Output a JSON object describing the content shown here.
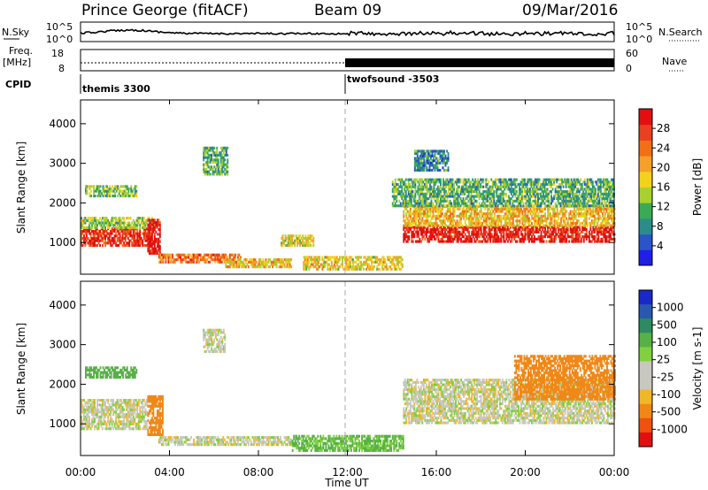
{
  "header": {
    "station": "Prince George (fitACF)",
    "beam": "Beam 09",
    "date": "09/Mar/2016"
  },
  "top_panels": {
    "nsky": {
      "label": "N.Sky",
      "tick_top": "10^5",
      "tick_bottom": "10^0",
      "right_label": "N.Search",
      "right_tick_top": "10^5",
      "right_tick_bottom": "10^0"
    },
    "freq": {
      "label_line1": "Freq.",
      "label_line2": "[MHz]",
      "tick_top": "18",
      "tick_bottom": "8",
      "right_label": "Nave",
      "right_tick_top": "60",
      "right_tick_bottom": "0"
    },
    "cpid": {
      "label": "CPID",
      "modes": [
        {
          "name": "themis 3300",
          "start_hour": 0,
          "end_hour": 12
        },
        {
          "name": "twofsound -3503",
          "start_hour": 12,
          "end_hour": 24
        }
      ]
    }
  },
  "chart_data": [
    {
      "type": "heatmap",
      "title": "",
      "xlabel": "",
      "ylabel": "Slant Range [km]",
      "x_range_hours": [
        0,
        24
      ],
      "ylim": [
        200,
        4600
      ],
      "yticks": [
        1000,
        2000,
        3000,
        4000
      ],
      "colorbar": {
        "label": "Power [dB]",
        "ticks": [
          "4",
          "8",
          "12",
          "16",
          "20",
          "24",
          "28"
        ],
        "colors": [
          "#1f1fe6",
          "#2a55c8",
          "#2c8c8c",
          "#3aaa55",
          "#a8d030",
          "#f2d21c",
          "#f5a02a",
          "#f07018",
          "#e84020",
          "#e01010"
        ],
        "range": [
          0,
          32
        ]
      },
      "regions": [
        {
          "t0": 0.0,
          "t1": 3.2,
          "r0": 900,
          "r1": 1350,
          "level": 0.9
        },
        {
          "t0": 0.0,
          "t1": 3.2,
          "r0": 1350,
          "r1": 1650,
          "level": 0.45
        },
        {
          "t0": 3.0,
          "t1": 3.6,
          "r0": 700,
          "r1": 1600,
          "level": 0.95
        },
        {
          "t0": 0.2,
          "t1": 2.5,
          "r0": 2150,
          "r1": 2450,
          "level": 0.4
        },
        {
          "t0": 3.5,
          "t1": 7.2,
          "r0": 480,
          "r1": 680,
          "level": 0.75
        },
        {
          "t0": 6.5,
          "t1": 9.5,
          "r0": 360,
          "r1": 560,
          "level": 0.6
        },
        {
          "t0": 5.5,
          "t1": 6.6,
          "r0": 2700,
          "r1": 3400,
          "level": 0.35
        },
        {
          "t0": 9.0,
          "t1": 10.5,
          "r0": 900,
          "r1": 1150,
          "level": 0.5
        },
        {
          "t0": 10.0,
          "t1": 14.5,
          "r0": 300,
          "r1": 650,
          "level": 0.55
        },
        {
          "t0": 14.5,
          "t1": 24.0,
          "r0": 1000,
          "r1": 1400,
          "level": 0.95
        },
        {
          "t0": 14.5,
          "t1": 24.0,
          "r0": 1400,
          "r1": 1900,
          "level": 0.6
        },
        {
          "t0": 14.0,
          "t1": 24.0,
          "r0": 1900,
          "r1": 2600,
          "level": 0.35
        },
        {
          "t0": 15.0,
          "t1": 16.5,
          "r0": 2800,
          "r1": 3300,
          "level": 0.25
        }
      ]
    },
    {
      "type": "heatmap",
      "title": "",
      "xlabel": "Time UT",
      "ylabel": "Slant Range [km]",
      "x_range_hours": [
        0,
        24
      ],
      "xticks": [
        "00:00",
        "04:00",
        "08:00",
        "12:00",
        "16:00",
        "20:00",
        "00:00"
      ],
      "ylim": [
        200,
        4600
      ],
      "yticks": [
        1000,
        2000,
        3000,
        4000
      ],
      "colorbar": {
        "label": "Velocity [m s-1]",
        "ticks": [
          "1000",
          "500",
          "100",
          "25",
          "-25",
          "-100",
          "-500",
          "-1000"
        ],
        "colors": [
          "#1a28c8",
          "#2a58b0",
          "#2e8a60",
          "#58b048",
          "#80d040",
          "#c8c8c0",
          "#c8c8c0",
          "#f0b828",
          "#f08818",
          "#f05010",
          "#e01010"
        ],
        "range": [
          -1250,
          1250
        ]
      },
      "regions": [
        {
          "t0": 0.0,
          "t1": 3.0,
          "r0": 850,
          "r1": 1600,
          "vel": 0
        },
        {
          "t0": 3.0,
          "t1": 3.7,
          "r0": 700,
          "r1": 1700,
          "vel": -200
        },
        {
          "t0": 3.5,
          "t1": 9.5,
          "r0": 450,
          "r1": 650,
          "vel": 0
        },
        {
          "t0": 9.5,
          "t1": 14.5,
          "r0": 300,
          "r1": 700,
          "vel": 70
        },
        {
          "t0": 0.2,
          "t1": 2.5,
          "r0": 2150,
          "r1": 2450,
          "vel": 120
        },
        {
          "t0": 14.5,
          "t1": 24.0,
          "r0": 1000,
          "r1": 2100,
          "vel": 0
        },
        {
          "t0": 19.5,
          "t1": 24.0,
          "r0": 1600,
          "r1": 2700,
          "vel": -180
        },
        {
          "t0": 5.5,
          "t1": 6.5,
          "r0": 2800,
          "r1": 3400,
          "vel": 0
        }
      ]
    }
  ]
}
